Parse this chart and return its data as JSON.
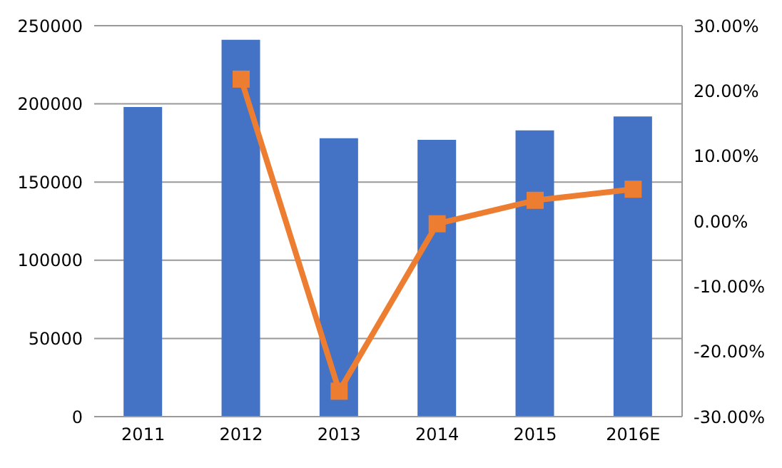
{
  "chart_data": {
    "type": "bar",
    "categories": [
      "2011",
      "2012",
      "2013",
      "2014",
      "2015",
      "2016E"
    ],
    "series": [
      {
        "color": "#4472c4",
        "values": [
          198000,
          241000,
          178000,
          177000,
          183000,
          192000
        ]
      },
      {
        "type": "line",
        "axis": "y2",
        "color": "#ed7d31",
        "marker": "square",
        "values": [
          null,
          21.8,
          -26.1,
          -0.4,
          3.2,
          4.9
        ]
      }
    ],
    "ylim": [
      0,
      250000
    ],
    "yticks": [
      0,
      50000,
      100000,
      150000,
      200000,
      250000
    ],
    "y2lim": [
      -30,
      30
    ],
    "y2ticks": [
      {
        "value": -30,
        "label": "-30.00%"
      },
      {
        "value": -20,
        "label": "-20.00%"
      },
      {
        "value": -10,
        "label": "-10.00%"
      },
      {
        "value": 0,
        "label": "0.00%"
      },
      {
        "value": 10,
        "label": "10.00%"
      },
      {
        "value": 20,
        "label": "20.00%"
      },
      {
        "value": 30,
        "label": "30.00%"
      }
    ],
    "grid": "y",
    "legend": false
  }
}
